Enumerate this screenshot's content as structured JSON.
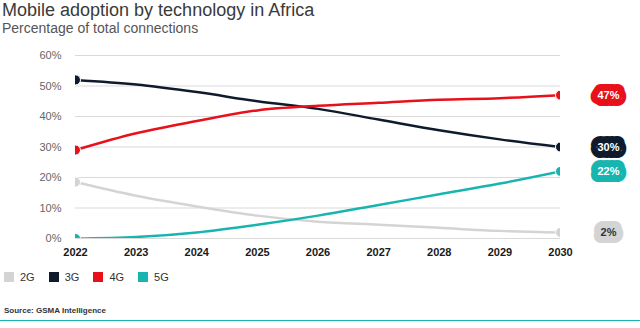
{
  "chart_data": {
    "type": "line",
    "title": "Mobile adoption by technology in Africa",
    "subtitle": "Percentage of total connections",
    "source": "Source: GSMA Intelligence",
    "x": [
      2022,
      2023,
      2024,
      2025,
      2026,
      2027,
      2028,
      2029,
      2030
    ],
    "xlim": [
      2022,
      2030
    ],
    "xticks": [
      2022,
      2023,
      2024,
      2025,
      2026,
      2027,
      2028,
      2029,
      2030
    ],
    "ylim": [
      0,
      60
    ],
    "yticks": [
      {
        "value": 0,
        "label": "0%"
      },
      {
        "value": 10,
        "label": "10%"
      },
      {
        "value": 20,
        "label": "20%"
      },
      {
        "value": 30,
        "label": "30%"
      },
      {
        "value": 40,
        "label": "40%"
      },
      {
        "value": 50,
        "label": "50%"
      },
      {
        "value": 60,
        "label": "60%"
      }
    ],
    "grid": true,
    "marker": "circle",
    "data_labels": true,
    "legend": "bottom",
    "series": [
      {
        "name": "2G",
        "color": "#d4d4d4",
        "values": [
          18.5,
          14,
          10.5,
          7.5,
          5.5,
          4.5,
          3.5,
          2.5,
          2
        ],
        "value_labels": [
          null,
          null,
          null,
          null,
          null,
          null,
          null,
          null,
          "2%"
        ]
      },
      {
        "name": "3G",
        "color": "#0f1b2d",
        "values": [
          52,
          50.5,
          48,
          45,
          42.5,
          39,
          35.5,
          32.5,
          30
        ],
        "value_labels": [
          null,
          null,
          null,
          null,
          null,
          null,
          null,
          null,
          "30%"
        ]
      },
      {
        "name": "4G",
        "color": "#e8101a",
        "values": [
          29,
          34.5,
          38.5,
          42,
          43.5,
          44.5,
          45.5,
          46,
          47
        ],
        "value_labels": [
          null,
          null,
          null,
          null,
          null,
          null,
          null,
          null,
          "47%"
        ]
      },
      {
        "name": "5G",
        "color": "#18b5b0",
        "values": [
          0,
          0.5,
          2,
          4.5,
          7.5,
          11,
          14.5,
          18,
          22
        ],
        "value_labels": [
          null,
          null,
          null,
          null,
          null,
          null,
          null,
          null,
          "22%"
        ]
      }
    ]
  }
}
